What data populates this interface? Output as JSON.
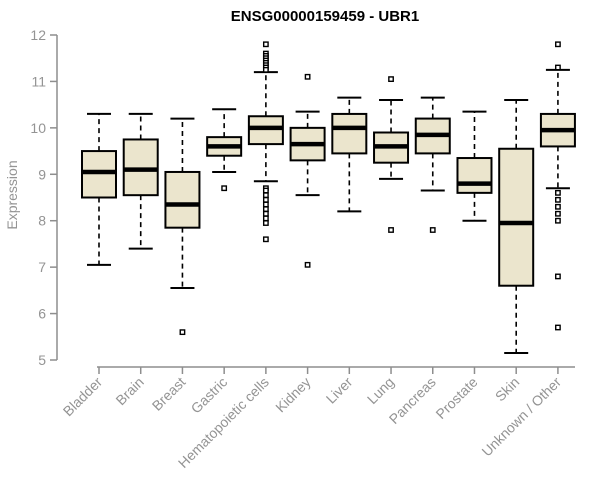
{
  "chart_data": {
    "type": "boxplot",
    "title": "ENSG00000159459 - UBR1",
    "ylabel": "Expression",
    "xlabel": "",
    "ylim": [
      5,
      12
    ],
    "yticks": [
      5,
      6,
      7,
      8,
      9,
      10,
      11,
      12
    ],
    "grid": false,
    "legend": "none",
    "categories": [
      "Bladder",
      "Brain",
      "Breast",
      "Gastric",
      "Hematopoietic cells",
      "Kidney",
      "Liver",
      "Lung",
      "Pancreas",
      "Prostate",
      "Skin",
      "Unknown / Other"
    ],
    "series": [
      {
        "category": "Bladder",
        "whisker_low": 7.05,
        "q1": 8.5,
        "median": 9.05,
        "q3": 9.5,
        "whisker_high": 10.3,
        "outliers": []
      },
      {
        "category": "Brain",
        "whisker_low": 7.4,
        "q1": 8.55,
        "median": 9.1,
        "q3": 9.75,
        "whisker_high": 10.3,
        "outliers": []
      },
      {
        "category": "Breast",
        "whisker_low": 6.55,
        "q1": 7.85,
        "median": 8.35,
        "q3": 9.05,
        "whisker_high": 10.2,
        "outliers": [
          5.6
        ]
      },
      {
        "category": "Gastric",
        "whisker_low": 9.05,
        "q1": 9.4,
        "median": 9.6,
        "q3": 9.8,
        "whisker_high": 10.4,
        "outliers": [
          8.7
        ]
      },
      {
        "category": "Hematopoietic cells",
        "whisker_low": 8.85,
        "q1": 9.65,
        "median": 10.0,
        "q3": 10.25,
        "whisker_high": 11.2,
        "outliers": [
          11.8,
          11.6,
          11.55,
          11.5,
          11.45,
          11.4,
          11.35,
          11.3,
          11.25,
          8.7,
          8.65,
          8.55,
          8.45,
          8.35,
          8.25,
          8.15,
          8.05,
          7.95,
          7.6
        ]
      },
      {
        "category": "Kidney",
        "whisker_low": 8.55,
        "q1": 9.3,
        "median": 9.65,
        "q3": 10.0,
        "whisker_high": 10.35,
        "outliers": [
          11.1,
          7.05
        ]
      },
      {
        "category": "Liver",
        "whisker_low": 8.2,
        "q1": 9.45,
        "median": 10.0,
        "q3": 10.3,
        "whisker_high": 10.65,
        "outliers": []
      },
      {
        "category": "Lung",
        "whisker_low": 8.9,
        "q1": 9.25,
        "median": 9.6,
        "q3": 9.9,
        "whisker_high": 10.6,
        "outliers": [
          11.05,
          7.8
        ]
      },
      {
        "category": "Pancreas",
        "whisker_low": 8.65,
        "q1": 9.45,
        "median": 9.85,
        "q3": 10.2,
        "whisker_high": 10.65,
        "outliers": [
          7.8
        ]
      },
      {
        "category": "Prostate",
        "whisker_low": 8.0,
        "q1": 8.6,
        "median": 8.8,
        "q3": 9.35,
        "whisker_high": 10.35,
        "outliers": []
      },
      {
        "category": "Skin",
        "whisker_low": 5.15,
        "q1": 6.6,
        "median": 7.95,
        "q3": 9.55,
        "whisker_high": 10.6,
        "outliers": []
      },
      {
        "category": "Unknown / Other",
        "whisker_low": 8.7,
        "q1": 9.6,
        "median": 9.95,
        "q3": 10.3,
        "whisker_high": 11.25,
        "outliers": [
          11.8,
          11.3,
          8.6,
          8.45,
          8.3,
          8.15,
          8.0,
          6.8,
          5.7
        ]
      }
    ],
    "colors": {
      "box_fill": "#EBE5CD",
      "box_border": "#000000",
      "median": "#000000",
      "whisker": "#000000",
      "outlier": "#000000",
      "axis": "#8E8E8E",
      "tick_label": "#949494",
      "title": "#000000",
      "background": "#FFFFFF"
    }
  }
}
